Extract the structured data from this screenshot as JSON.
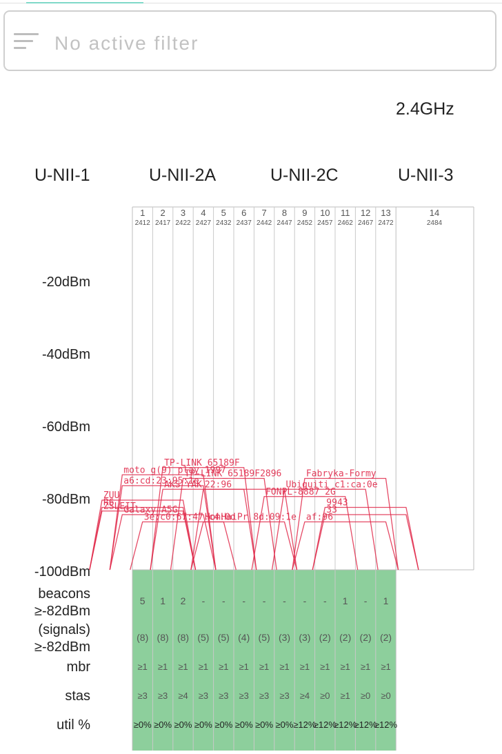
{
  "filter": {
    "icon": "filter-list-icon",
    "placeholder": "No active filter"
  },
  "band": "2.4GHz",
  "unii_labels": [
    "U-NII-1",
    "U-NII-2A",
    "U-NII-2C",
    "U-NII-3"
  ],
  "chart_data": {
    "type": "area",
    "xlabel": "",
    "ylabel": "",
    "channels": [
      {
        "ch": "1",
        "freq": "2412"
      },
      {
        "ch": "2",
        "freq": "2417"
      },
      {
        "ch": "3",
        "freq": "2422"
      },
      {
        "ch": "4",
        "freq": "2427"
      },
      {
        "ch": "5",
        "freq": "2432"
      },
      {
        "ch": "6",
        "freq": "2437"
      },
      {
        "ch": "7",
        "freq": "2442"
      },
      {
        "ch": "8",
        "freq": "2447"
      },
      {
        "ch": "9",
        "freq": "2452"
      },
      {
        "ch": "10",
        "freq": "2457"
      },
      {
        "ch": "11",
        "freq": "2462"
      },
      {
        "ch": "12",
        "freq": "2467"
      },
      {
        "ch": "13",
        "freq": "2472"
      },
      {
        "ch": "14",
        "freq": "2484"
      }
    ],
    "y_ticks": [
      "-20dBm",
      "-40dBm",
      "-60dBm",
      "-80dBm",
      "-100dBm"
    ],
    "y_values": [
      -20,
      -40,
      -60,
      -80,
      -100
    ],
    "ylim": [
      -100,
      -20
    ],
    "networks": [
      {
        "label": "TP-LINK_65189F",
        "channel": 4,
        "dbm": -71,
        "width": 8
      },
      {
        "label": "moto g(9) play 1997",
        "channel": 2,
        "dbm": -73,
        "width": 8
      },
      {
        "label": "TP-LINK_65189F2896",
        "channel": 5,
        "dbm": -74,
        "width": 8
      },
      {
        "label": "a6:cd:23:95:1e",
        "channel": 2,
        "dbm": -76,
        "width": 8
      },
      {
        "label": "AKS_YAK",
        "channel": 4,
        "dbm": -77,
        "width": 8
      },
      {
        "label": "22:96",
        "channel": 6,
        "dbm": -77,
        "width": 8
      },
      {
        "label": "ZUU",
        "channel": 1,
        "dbm": -80,
        "width": 8
      },
      {
        "label": "R6",
        "channel": 1,
        "dbm": -82,
        "width": 8
      },
      {
        "label": "ZSLEIT",
        "channel": 1,
        "dbm": -83,
        "width": 8
      },
      {
        "label": "Galaxy A5G",
        "channel": 2,
        "dbm": -84,
        "width": 8
      },
      {
        "label": "3e:c0:67:47:c4:0d",
        "channel": 3,
        "dbm": -86,
        "width": 8
      },
      {
        "label": "HonHaiPr_8d:09:1e",
        "channel": 6,
        "dbm": -86,
        "width": 8
      },
      {
        "label": "Fabryka-Formy",
        "channel": 11,
        "dbm": -74,
        "width": 8
      },
      {
        "label": "Ubiquiti_c1:ca:0e",
        "channel": 10,
        "dbm": -77,
        "width": 8
      },
      {
        "label": "FONPL-8887_2G",
        "channel": 9,
        "dbm": -79,
        "width": 8
      },
      {
        "label": "9943",
        "channel": 12,
        "dbm": -82,
        "width": 8
      },
      {
        "label": "33",
        "channel": 12,
        "dbm": -84,
        "width": 8
      },
      {
        "label": "af:96",
        "channel": 11,
        "dbm": -86,
        "width": 8
      }
    ],
    "row_labels": [
      "beacons",
      "≥-82dBm",
      "(signals)",
      "≥-82dBm",
      "mbr",
      "stas",
      "util %"
    ],
    "rows": {
      "beacons": [
        "5",
        "1",
        "2",
        "-",
        "-",
        "-",
        "-",
        "-",
        "-",
        "-",
        "1",
        "-",
        "1"
      ],
      "signals": [
        "(8)",
        "(8)",
        "(8)",
        "(5)",
        "(5)",
        "(4)",
        "(5)",
        "(3)",
        "(3)",
        "(2)",
        "(2)",
        "(2)",
        "(2)"
      ],
      "mbr": [
        "≥1",
        "≥1",
        "≥1",
        "≥1",
        "≥1",
        "≥1",
        "≥1",
        "≥1",
        "≥1",
        "≥1",
        "≥1",
        "≥1",
        "≥1"
      ],
      "stas": [
        "≥3",
        "≥3",
        "≥4",
        "≥3",
        "≥3",
        "≥3",
        "≥3",
        "≥3",
        "≥4",
        "≥0",
        "≥1",
        "≥0",
        "≥0"
      ],
      "util": [
        "≥0%",
        "≥0%",
        "≥0%",
        "≥0%",
        "≥0%",
        "≥0%",
        "≥0%",
        "≥0%",
        "≥12%",
        "≥12%",
        "≥12%",
        "≥12%",
        "≥12%"
      ]
    },
    "colors": {
      "network": "#e0294a",
      "table_fill": "#8dcf9c",
      "grid": "#bdbdbd"
    }
  }
}
